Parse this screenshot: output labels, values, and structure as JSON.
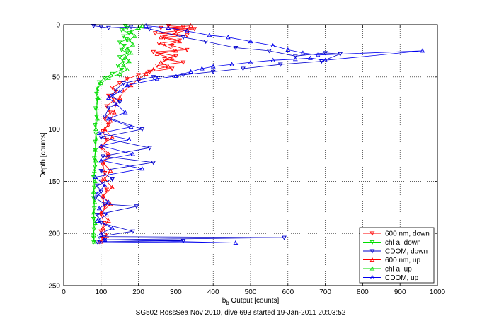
{
  "chart_data": {
    "type": "line",
    "xlabel_main": "b",
    "xlabel_sub": "b",
    "xlabel_rest": " Output [counts]",
    "ylabel": "Depth [counts]",
    "caption": "SG502 RossSea Nov 2010, dive 693 started 19-Jan-2011 20:03:52",
    "xlim": [
      0,
      1000
    ],
    "ylim": [
      0,
      250
    ],
    "y_reversed": true,
    "grid": true,
    "legend_position": "bottom-right",
    "x_ticks": [
      "0",
      "100",
      "200",
      "300",
      "400",
      "500",
      "600",
      "700",
      "800",
      "900",
      "1000"
    ],
    "y_ticks": [
      "0",
      "50",
      "100",
      "150",
      "200",
      "250"
    ],
    "series": [
      {
        "name": "600 nm, down",
        "color": "#ff0000",
        "marker": "triangle-down",
        "points": [
          [
            280,
            1
          ],
          [
            320,
            2
          ],
          [
            260,
            3
          ],
          [
            350,
            4
          ],
          [
            300,
            6
          ],
          [
            245,
            8
          ],
          [
            330,
            10
          ],
          [
            270,
            12
          ],
          [
            310,
            15
          ],
          [
            255,
            18
          ],
          [
            290,
            20
          ],
          [
            330,
            24
          ],
          [
            240,
            26
          ],
          [
            300,
            30
          ],
          [
            270,
            33
          ],
          [
            320,
            36
          ],
          [
            250,
            39
          ],
          [
            290,
            42
          ],
          [
            230,
            45
          ],
          [
            200,
            48
          ],
          [
            170,
            52
          ],
          [
            150,
            56
          ],
          [
            130,
            60
          ],
          [
            140,
            64
          ],
          [
            120,
            68
          ],
          [
            135,
            72
          ],
          [
            115,
            78
          ],
          [
            125,
            84
          ],
          [
            110,
            90
          ],
          [
            120,
            96
          ],
          [
            105,
            102
          ],
          [
            115,
            110
          ],
          [
            100,
            118
          ],
          [
            120,
            126
          ],
          [
            105,
            134
          ],
          [
            110,
            142
          ],
          [
            100,
            150
          ],
          [
            115,
            158
          ],
          [
            105,
            166
          ],
          [
            110,
            174
          ],
          [
            100,
            182
          ],
          [
            108,
            190
          ],
          [
            100,
            198
          ],
          [
            105,
            205
          ],
          [
            95,
            208
          ]
        ]
      },
      {
        "name": "chl a, down",
        "color": "#00dd00",
        "marker": "triangle-down",
        "points": [
          [
            165,
            1
          ],
          [
            170,
            3
          ],
          [
            155,
            5
          ],
          [
            175,
            8
          ],
          [
            160,
            11
          ],
          [
            168,
            14
          ],
          [
            150,
            17
          ],
          [
            162,
            20
          ],
          [
            155,
            24
          ],
          [
            170,
            27
          ],
          [
            150,
            31
          ],
          [
            160,
            35
          ],
          [
            145,
            39
          ],
          [
            155,
            43
          ],
          [
            130,
            47
          ],
          [
            110,
            51
          ],
          [
            95,
            55
          ],
          [
            90,
            60
          ],
          [
            88,
            66
          ],
          [
            90,
            72
          ],
          [
            85,
            80
          ],
          [
            88,
            88
          ],
          [
            84,
            96
          ],
          [
            86,
            104
          ],
          [
            84,
            112
          ],
          [
            85,
            120
          ],
          [
            82,
            128
          ],
          [
            84,
            136
          ],
          [
            80,
            146
          ],
          [
            82,
            156
          ],
          [
            80,
            166
          ],
          [
            82,
            176
          ],
          [
            80,
            186
          ],
          [
            81,
            196
          ],
          [
            80,
            204
          ],
          [
            80,
            208
          ]
        ]
      },
      {
        "name": "CDOM, down",
        "color": "#0000cc",
        "marker": "triangle-down",
        "points": [
          [
            80,
            1
          ],
          [
            100,
            2
          ],
          [
            120,
            3
          ],
          [
            180,
            2
          ],
          [
            230,
            4
          ],
          [
            320,
            12
          ],
          [
            380,
            16
          ],
          [
            460,
            22
          ],
          [
            550,
            25
          ],
          [
            620,
            30
          ],
          [
            700,
            27
          ],
          [
            740,
            28
          ],
          [
            690,
            35
          ],
          [
            580,
            38
          ],
          [
            480,
            42
          ],
          [
            400,
            45
          ],
          [
            320,
            48
          ],
          [
            240,
            50
          ],
          [
            200,
            53
          ],
          [
            160,
            56
          ],
          [
            140,
            62
          ],
          [
            130,
            68
          ],
          [
            150,
            74
          ],
          [
            120,
            80
          ],
          [
            110,
            88
          ],
          [
            210,
            100
          ],
          [
            100,
            108
          ],
          [
            230,
            118
          ],
          [
            105,
            126
          ],
          [
            240,
            132
          ],
          [
            100,
            140
          ],
          [
            130,
            148
          ],
          [
            90,
            154
          ],
          [
            100,
            160
          ],
          [
            85,
            166
          ],
          [
            110,
            172
          ],
          [
            195,
            174
          ],
          [
            90,
            182
          ],
          [
            100,
            190
          ],
          [
            185,
            198
          ],
          [
            95,
            203
          ],
          [
            590,
            204
          ],
          [
            110,
            206
          ],
          [
            320,
            207
          ],
          [
            90,
            208
          ]
        ]
      },
      {
        "name": "600 nm, up",
        "color": "#ff0000",
        "marker": "triangle-up",
        "points": [
          [
            100,
            208
          ],
          [
            115,
            202
          ],
          [
            105,
            195
          ],
          [
            120,
            188
          ],
          [
            100,
            180
          ],
          [
            125,
            172
          ],
          [
            105,
            164
          ],
          [
            130,
            156
          ],
          [
            110,
            148
          ],
          [
            125,
            140
          ],
          [
            105,
            132
          ],
          [
            120,
            124
          ],
          [
            100,
            116
          ],
          [
            130,
            108
          ],
          [
            110,
            100
          ],
          [
            125,
            92
          ],
          [
            135,
            84
          ],
          [
            140,
            76
          ],
          [
            150,
            70
          ],
          [
            160,
            64
          ],
          [
            180,
            58
          ],
          [
            200,
            52
          ],
          [
            220,
            47
          ],
          [
            240,
            43
          ],
          [
            280,
            40
          ],
          [
            260,
            36
          ],
          [
            290,
            32
          ],
          [
            250,
            28
          ],
          [
            300,
            25
          ],
          [
            270,
            20
          ],
          [
            310,
            16
          ],
          [
            260,
            12
          ],
          [
            300,
            8
          ],
          [
            330,
            5
          ],
          [
            280,
            3
          ],
          [
            340,
            1
          ]
        ]
      },
      {
        "name": "chl a, up",
        "color": "#00dd00",
        "marker": "triangle-up",
        "points": [
          [
            82,
            208
          ],
          [
            80,
            200
          ],
          [
            84,
            190
          ],
          [
            80,
            180
          ],
          [
            83,
            170
          ],
          [
            80,
            160
          ],
          [
            84,
            150
          ],
          [
            82,
            140
          ],
          [
            86,
            130
          ],
          [
            84,
            120
          ],
          [
            88,
            110
          ],
          [
            86,
            100
          ],
          [
            90,
            90
          ],
          [
            88,
            80
          ],
          [
            92,
            70
          ],
          [
            90,
            62
          ],
          [
            100,
            56
          ],
          [
            120,
            51
          ],
          [
            150,
            47
          ],
          [
            170,
            43
          ],
          [
            160,
            39
          ],
          [
            175,
            35
          ],
          [
            165,
            31
          ],
          [
            180,
            27
          ],
          [
            170,
            23
          ],
          [
            185,
            19
          ],
          [
            175,
            15
          ],
          [
            190,
            11
          ],
          [
            180,
            7
          ],
          [
            200,
            3
          ],
          [
            210,
            1
          ]
        ]
      },
      {
        "name": "CDOM, up",
        "color": "#0000ee",
        "marker": "triangle-up",
        "points": [
          [
            95,
            208
          ],
          [
            460,
            209
          ],
          [
            110,
            206
          ],
          [
            100,
            200
          ],
          [
            130,
            195
          ],
          [
            90,
            188
          ],
          [
            115,
            182
          ],
          [
            95,
            176
          ],
          [
            120,
            170
          ],
          [
            90,
            162
          ],
          [
            110,
            154
          ],
          [
            85,
            146
          ],
          [
            210,
            138
          ],
          [
            100,
            130
          ],
          [
            185,
            124
          ],
          [
            100,
            116
          ],
          [
            175,
            110
          ],
          [
            95,
            104
          ],
          [
            180,
            98
          ],
          [
            120,
            90
          ],
          [
            165,
            84
          ],
          [
            140,
            76
          ],
          [
            120,
            70
          ],
          [
            150,
            64
          ],
          [
            170,
            58
          ],
          [
            250,
            52
          ],
          [
            300,
            49
          ],
          [
            340,
            45
          ],
          [
            370,
            42
          ],
          [
            400,
            40
          ],
          [
            450,
            38
          ],
          [
            500,
            36
          ],
          [
            560,
            34
          ],
          [
            620,
            33
          ],
          [
            660,
            32
          ],
          [
            700,
            34
          ],
          [
            960,
            25
          ],
          [
            680,
            29
          ],
          [
            640,
            27
          ],
          [
            600,
            24
          ],
          [
            560,
            20
          ],
          [
            500,
            16
          ],
          [
            440,
            12
          ],
          [
            390,
            10
          ],
          [
            330,
            6
          ],
          [
            280,
            3
          ],
          [
            220,
            1
          ]
        ]
      }
    ]
  }
}
